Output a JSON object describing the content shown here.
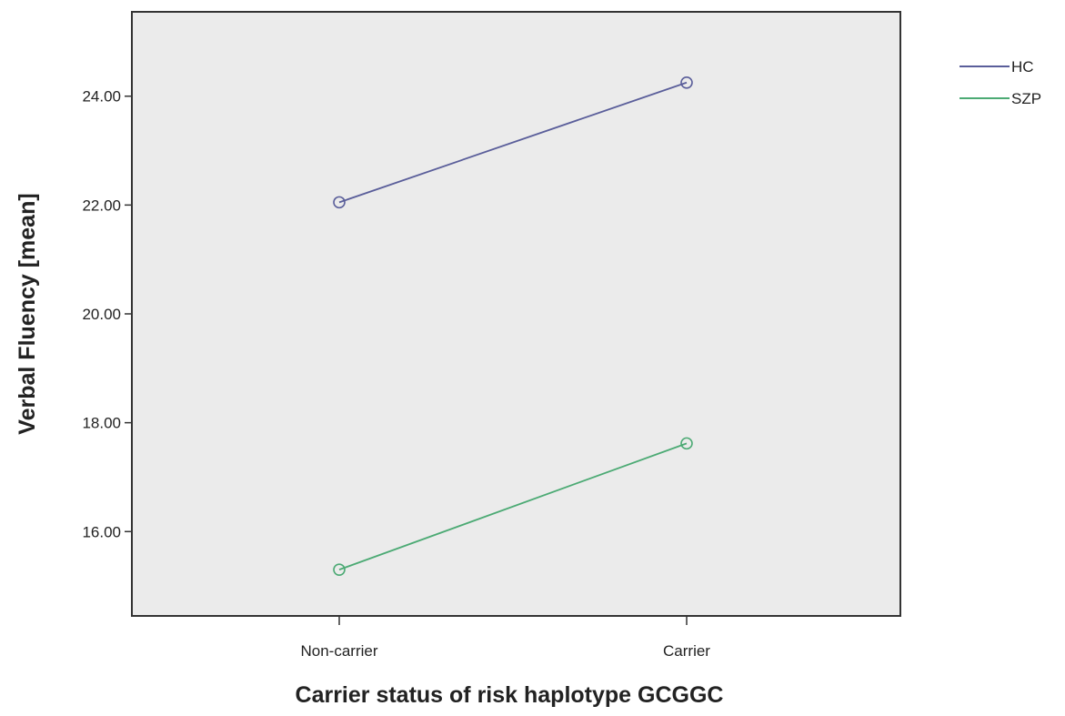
{
  "chart_data": {
    "type": "line",
    "title": "",
    "xlabel": "Carrier status of risk haplotype GCGGC",
    "ylabel": "Verbal Fluency [mean]",
    "categories": [
      "Non-carrier",
      "Carrier"
    ],
    "series": [
      {
        "name": "HC",
        "color": "#5a5e9a",
        "values": [
          22.05,
          24.25
        ]
      },
      {
        "name": "SZP",
        "color": "#4caa74",
        "values": [
          15.3,
          17.62
        ]
      }
    ],
    "y_ticks": [
      "16.00",
      "18.00",
      "20.00",
      "22.00",
      "24.00"
    ],
    "ylim": [
      14.45,
      25.55
    ],
    "grid": false,
    "legend": "right",
    "plot_background": "#ebebeb"
  }
}
